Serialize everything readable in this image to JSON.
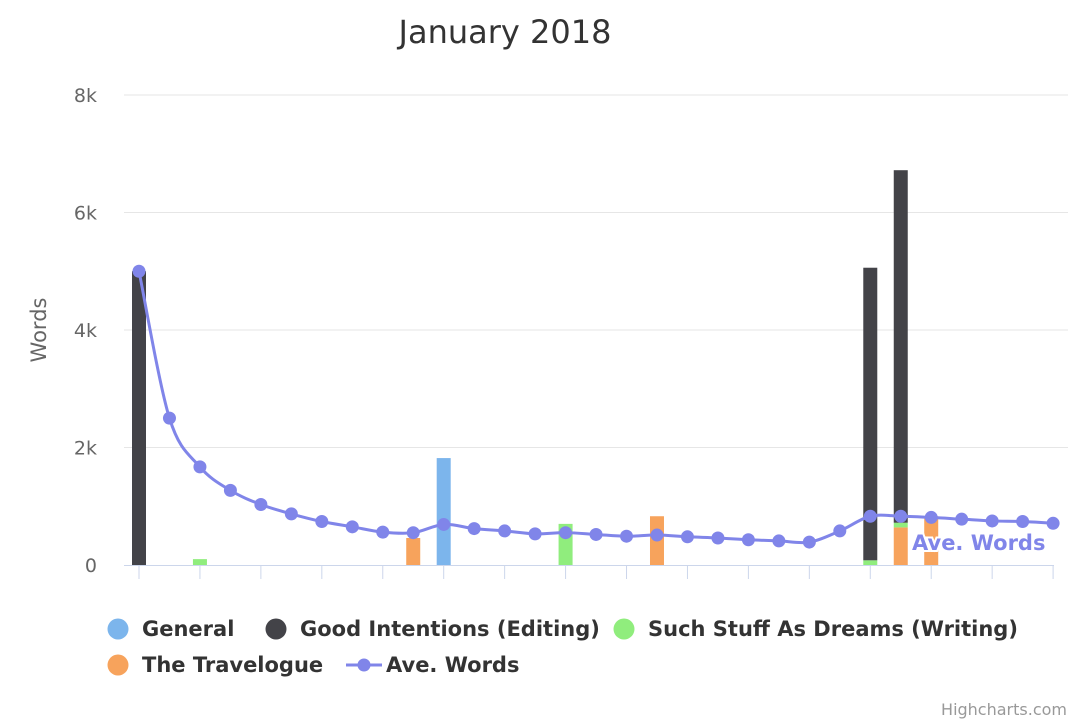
{
  "chart_data": {
    "type": "bar",
    "title": "January 2018",
    "subtitle": "",
    "xlabel": "",
    "ylabel": "Words",
    "ylim": [
      0,
      8000
    ],
    "yticks": [
      0,
      2000,
      4000,
      6000,
      8000
    ],
    "ytick_labels": [
      "0",
      "2k",
      "4k",
      "6k",
      "8k"
    ],
    "stacked": true,
    "grid": true,
    "legend_position": "bottom",
    "x": [
      1,
      2,
      3,
      4,
      5,
      6,
      7,
      8,
      9,
      10,
      11,
      12,
      13,
      14,
      15,
      16,
      17,
      18,
      19,
      20,
      21,
      22,
      23,
      24,
      25,
      26,
      27,
      28,
      29,
      30,
      31
    ],
    "series": [
      {
        "name": "General",
        "type": "column",
        "color": "#7cb5ec",
        "values": [
          0,
          0,
          0,
          0,
          0,
          0,
          0,
          0,
          0,
          0,
          1820,
          0,
          0,
          0,
          0,
          0,
          0,
          0,
          0,
          0,
          0,
          0,
          0,
          0,
          0,
          0,
          0,
          0,
          0,
          0,
          0
        ]
      },
      {
        "name": "Good Intentions (Editing)",
        "type": "column",
        "color": "#434348",
        "values": [
          5000,
          0,
          0,
          0,
          0,
          0,
          0,
          0,
          0,
          0,
          0,
          0,
          0,
          0,
          0,
          0,
          0,
          0,
          0,
          0,
          0,
          0,
          0,
          0,
          4980,
          6000,
          0,
          0,
          0,
          0,
          0
        ]
      },
      {
        "name": "Such Stuff As Dreams (Writing)",
        "type": "column",
        "color": "#90ed7d",
        "values": [
          0,
          0,
          100,
          0,
          0,
          0,
          0,
          0,
          0,
          0,
          0,
          0,
          0,
          0,
          700,
          0,
          0,
          0,
          0,
          0,
          0,
          0,
          0,
          0,
          80,
          80,
          0,
          0,
          0,
          0,
          0
        ]
      },
      {
        "name": "The Travelogue",
        "type": "column",
        "color": "#f7a35c",
        "values": [
          0,
          0,
          0,
          0,
          0,
          0,
          0,
          0,
          0,
          460,
          0,
          0,
          0,
          0,
          0,
          0,
          0,
          830,
          0,
          0,
          0,
          0,
          0,
          0,
          0,
          640,
          830,
          0,
          0,
          0,
          0
        ]
      },
      {
        "name": "Ave. Words",
        "type": "spline",
        "color": "#8085e9",
        "values": [
          5000,
          2500,
          1670,
          1270,
          1030,
          870,
          740,
          650,
          560,
          550,
          690,
          620,
          580,
          530,
          550,
          520,
          490,
          510,
          480,
          460,
          430,
          410,
          390,
          580,
          830,
          830,
          810,
          780,
          750,
          740,
          710
        ]
      }
    ],
    "annotations": [
      {
        "text": "Ave. Words",
        "series": "Ave. Words"
      }
    ],
    "credits": "Highcharts.com"
  }
}
